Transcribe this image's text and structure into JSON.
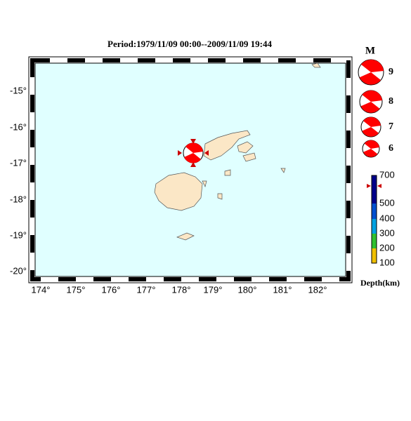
{
  "title": "Period:1979/11/09 00:00--2009/11/09 19:44",
  "map": {
    "latitude_labels": [
      "-15°",
      "-16°",
      "-17°",
      "-18°",
      "-19°",
      "-20°"
    ],
    "longitude_labels": [
      "174°",
      "175°",
      "176°",
      "177°",
      "178°",
      "179°",
      "180°",
      "181°",
      "182°"
    ]
  },
  "legend": {
    "magnitude_title": "M",
    "magnitudes": [
      "9",
      "8",
      "7",
      "6"
    ],
    "depth_labels": [
      "700",
      "500",
      "400",
      "300",
      "200",
      "100"
    ],
    "depth_title": "Depth(km)"
  }
}
